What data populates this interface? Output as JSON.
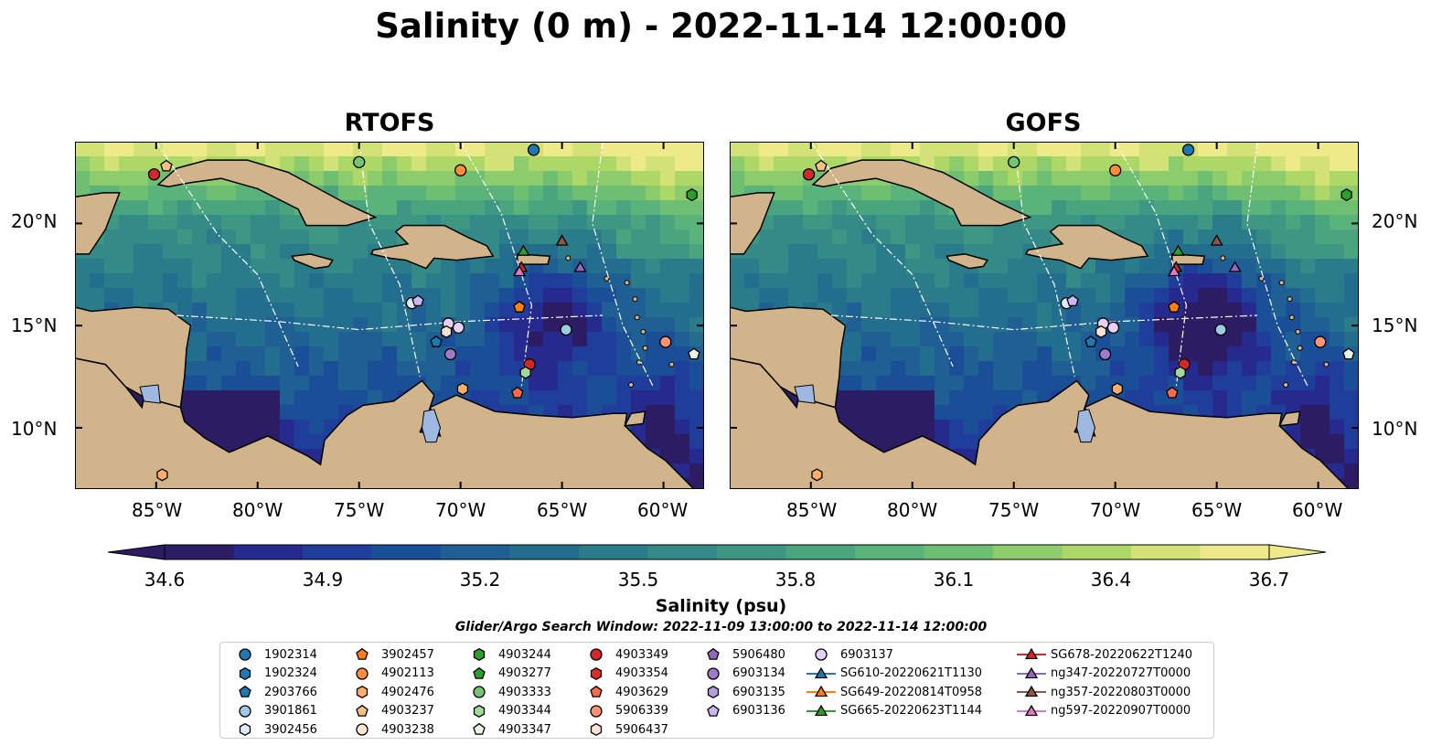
{
  "title": "Salinity (0 m) - 2022-11-14 12:00:00",
  "panels": [
    {
      "title": "RTOFS",
      "model": "rtofs"
    },
    {
      "title": "GOFS",
      "model": "gofs"
    }
  ],
  "map": {
    "lon_range": [
      -89,
      -58
    ],
    "lat_range": [
      7,
      24
    ],
    "x_ticks": [
      "85°W",
      "80°W",
      "75°W",
      "70°W",
      "65°W",
      "60°W"
    ],
    "y_ticks": [
      "20°N",
      "15°N",
      "10°N"
    ],
    "land_color": "#d2b48c",
    "deep_sea_color": "#2b1c63"
  },
  "colorbar": {
    "label": "Salinity (psu)",
    "ticks": [
      "34.6",
      "34.9",
      "35.2",
      "35.5",
      "35.8",
      "36.1",
      "36.4",
      "36.7"
    ],
    "vmin": 34.6,
    "vmax": 36.7,
    "colors": [
      "#2b1c63",
      "#262a8f",
      "#1f3d9b",
      "#1a4f97",
      "#1f5f93",
      "#236e8e",
      "#2b7c8a",
      "#348a86",
      "#3d9783",
      "#4aa57f",
      "#59b37a",
      "#6ebf72",
      "#8ccc6c",
      "#add867",
      "#d2e276",
      "#eeea8a"
    ]
  },
  "search_window": "Glider/Argo Search Window: 2022-11-09 13:00:00 to 2022-11-14 12:00:00",
  "legend": [
    [
      "1902314",
      "1902324",
      "2903766",
      "3901861",
      "3902456"
    ],
    [
      "3902457",
      "4902113",
      "4902476",
      "4903237",
      "4903238"
    ],
    [
      "4903244",
      "4903277",
      "4903333",
      "4903344",
      "4903347"
    ],
    [
      "4903349",
      "4903354",
      "4903629",
      "5906339",
      "5906437"
    ],
    [
      "5906480",
      "6903134",
      "6903135",
      "6903136"
    ],
    [
      "6903137",
      "SG610-20220621T1130",
      "SG649-20220814T0958",
      "SG665-20220623T1144"
    ],
    [
      "SG678-20220622T1240",
      "ng347-20220727T0000",
      "ng357-20220803T0000",
      "ng597-20220907T0000"
    ]
  ],
  "legend_symbols": [
    [
      [
        "circle",
        "#1f77b4"
      ],
      [
        "hexagon",
        "#1f77b4"
      ],
      [
        "pentagon",
        "#1f77b4"
      ],
      [
        "circle",
        "#9ecae1"
      ],
      [
        "hexagon",
        "#deebf7"
      ]
    ],
    [
      [
        "pentagon",
        "#ff7f0e"
      ],
      [
        "circle",
        "#fd8d3c"
      ],
      [
        "hexagon",
        "#fdae6b"
      ],
      [
        "pentagon",
        "#fdbe85"
      ],
      [
        "circle",
        "#fee6ce"
      ]
    ],
    [
      [
        "hexagon",
        "#2ca02c"
      ],
      [
        "pentagon",
        "#2ca02c"
      ],
      [
        "circle",
        "#74c476"
      ],
      [
        "hexagon",
        "#a1d99b"
      ],
      [
        "pentagon",
        "#e5f5e0"
      ]
    ],
    [
      [
        "circle",
        "#d62728"
      ],
      [
        "hexagon",
        "#de2d26"
      ],
      [
        "pentagon",
        "#fb6a4a"
      ],
      [
        "circle",
        "#fc9272"
      ],
      [
        "hexagon",
        "#fee0d2"
      ]
    ],
    [
      [
        "pentagon",
        "#9467bd"
      ],
      [
        "circle",
        "#9e7ac8"
      ],
      [
        "hexagon",
        "#b39ddb"
      ],
      [
        "pentagon",
        "#cbb7f0"
      ]
    ],
    [
      [
        "circle",
        "#e6d0f5"
      ],
      [
        "triangle",
        "#1f77b4"
      ],
      [
        "triangle",
        "#ff7f0e"
      ],
      [
        "triangle",
        "#2ca02c"
      ]
    ],
    [
      [
        "triangle",
        "#d62728"
      ],
      [
        "triangle",
        "#9467bd"
      ],
      [
        "triangle",
        "#8c564b"
      ],
      [
        "triangle",
        "#e377c2"
      ]
    ]
  ],
  "observations": [
    {
      "lon": -66.4,
      "lat": 23.6,
      "shape": "circle",
      "color": "#1f77b4"
    },
    {
      "lon": -70.0,
      "lat": 22.6,
      "shape": "circle",
      "color": "#fd8d3c"
    },
    {
      "lon": -75.0,
      "lat": 23.0,
      "shape": "circle",
      "color": "#74c476"
    },
    {
      "lon": -85.1,
      "lat": 22.4,
      "shape": "circle",
      "color": "#d62728"
    },
    {
      "lon": -84.5,
      "lat": 22.8,
      "shape": "pentagon",
      "color": "#fdbe85"
    },
    {
      "lon": -58.6,
      "lat": 21.4,
      "shape": "hexagon",
      "color": "#2ca02c"
    },
    {
      "lon": -66.9,
      "lat": 18.6,
      "shape": "triangle",
      "color": "#2ca02c"
    },
    {
      "lon": -65.0,
      "lat": 19.1,
      "shape": "triangle",
      "color": "#8c564b"
    },
    {
      "lon": -64.1,
      "lat": 17.8,
      "shape": "triangle",
      "color": "#9467bd"
    },
    {
      "lon": -67.0,
      "lat": 17.8,
      "shape": "triangle",
      "color": "#d62728"
    },
    {
      "lon": -67.1,
      "lat": 17.6,
      "shape": "triangle",
      "color": "#e377c2"
    },
    {
      "lon": -67.1,
      "lat": 15.9,
      "shape": "pentagon",
      "color": "#ff7f0e"
    },
    {
      "lon": -64.8,
      "lat": 14.8,
      "shape": "circle",
      "color": "#9ecae1"
    },
    {
      "lon": -72.4,
      "lat": 16.1,
      "shape": "circle",
      "color": "#deebf7"
    },
    {
      "lon": -72.1,
      "lat": 16.2,
      "shape": "pentagon",
      "color": "#cbb7f0"
    },
    {
      "lon": -70.6,
      "lat": 15.1,
      "shape": "circle",
      "color": "#e6d0f5"
    },
    {
      "lon": -70.1,
      "lat": 14.9,
      "shape": "circle",
      "color": "#e6d0f5"
    },
    {
      "lon": -70.7,
      "lat": 14.7,
      "shape": "hexagon",
      "color": "#fee0d2"
    },
    {
      "lon": -70.5,
      "lat": 13.6,
      "shape": "circle",
      "color": "#9e7ac8"
    },
    {
      "lon": -71.2,
      "lat": 14.2,
      "shape": "pentagon",
      "color": "#1f77b4"
    },
    {
      "lon": -66.6,
      "lat": 13.1,
      "shape": "circle",
      "color": "#d62728"
    },
    {
      "lon": -66.8,
      "lat": 12.7,
      "shape": "hexagon",
      "color": "#a1d99b"
    },
    {
      "lon": -67.2,
      "lat": 11.7,
      "shape": "pentagon",
      "color": "#fb6a4a"
    },
    {
      "lon": -69.9,
      "lat": 11.9,
      "shape": "hexagon",
      "color": "#fdae6b"
    },
    {
      "lon": -59.9,
      "lat": 14.2,
      "shape": "circle",
      "color": "#fc9272"
    },
    {
      "lon": -58.5,
      "lat": 13.6,
      "shape": "pentagon",
      "color": "#e5f5e0"
    },
    {
      "lon": -84.7,
      "lat": 7.7,
      "shape": "hexagon",
      "color": "#fdae6b"
    }
  ]
}
